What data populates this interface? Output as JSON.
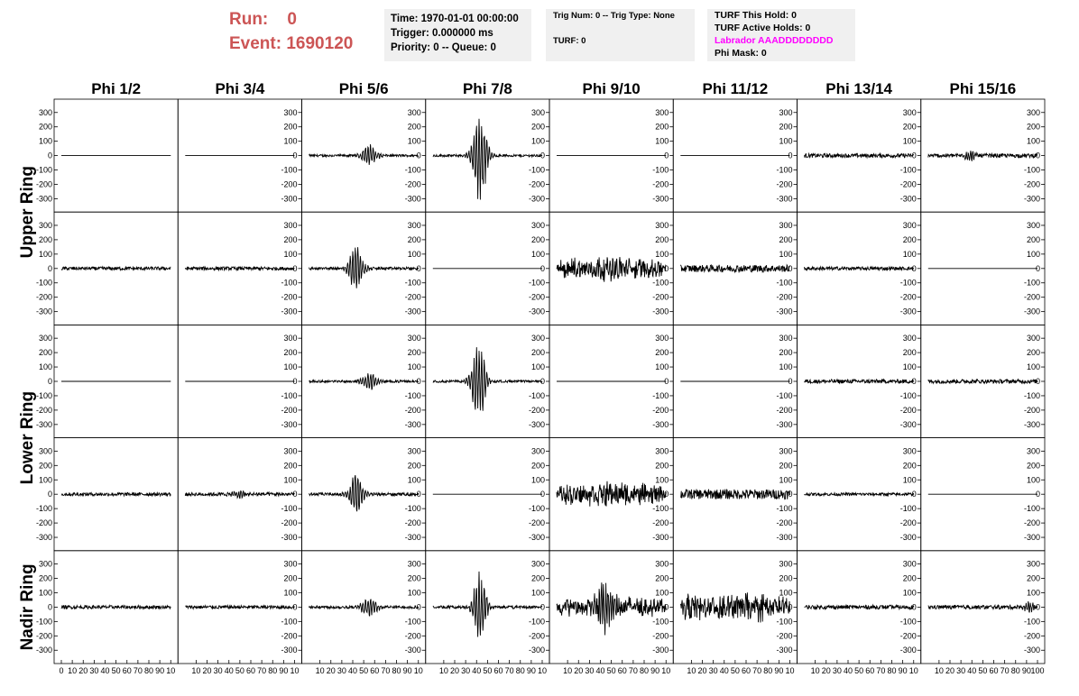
{
  "header": {
    "run_label": "Run:",
    "run_value": "0",
    "event_label": "Event:",
    "event_value": "1690120"
  },
  "time_box": {
    "time": "Time: 1970-01-01 00:00:00",
    "trigger": "Trigger: 0.000000 ms",
    "priority": "Priority: 0 -- Queue: 0"
  },
  "trig_box": {
    "trig": "Trig Num: 0 -- Trig Type: None",
    "turf": "TURF: 0"
  },
  "turf_box": {
    "this_hold": "TURF This Hold: 0",
    "active_holds": "TURF Active Holds: 0",
    "labrador": "Labrador AAADDDDDDDD",
    "phi_mask": "Phi Mask: 0"
  },
  "colors": {
    "header_red": "#cc5555",
    "labrador_magenta": "#ff00ff",
    "box_bg": "#f0f0f0",
    "trace": "#000000"
  },
  "chart_data": {
    "type": "line",
    "columns": [
      "Phi 1/2",
      "Phi 3/4",
      "Phi 5/6",
      "Phi 7/8",
      "Phi 9/10",
      "Phi 11/12",
      "Phi 13/14",
      "Phi 15/16"
    ],
    "rings": [
      "Upper Ring",
      "Lower Ring",
      "Nadir Ring"
    ],
    "rows_per_ring": [
      2,
      2,
      1
    ],
    "xlim": [
      0,
      100
    ],
    "ylim": [
      -380,
      380
    ],
    "y_ticks": [
      -300,
      -200,
      -100,
      0,
      100,
      200,
      300
    ],
    "x_ticks": [
      0,
      10,
      20,
      30,
      40,
      50,
      60,
      70,
      80,
      90,
      100
    ],
    "x_tick_labels_first": [
      "0",
      "10",
      "20",
      "30",
      "40",
      "50",
      "60",
      "70",
      "80",
      "90",
      "10"
    ],
    "x_tick_labels": [
      "10",
      "20",
      "30",
      "40",
      "50",
      "60",
      "70",
      "80",
      "90",
      "10"
    ],
    "x_tick_labels_last": [
      "10",
      "20",
      "30",
      "40",
      "50",
      "60",
      "70",
      "80",
      "90",
      "100"
    ],
    "waveforms": [
      [
        {
          "kind": "flat"
        },
        {
          "kind": "flat"
        },
        {
          "kind": "pulse",
          "noise": 8,
          "center": 55,
          "width": 8,
          "amp": 75
        },
        {
          "kind": "pulse",
          "noise": 8,
          "center": 43,
          "width": 7,
          "amp": 330
        },
        {
          "kind": "flat"
        },
        {
          "kind": "flat"
        },
        {
          "kind": "noise",
          "noise": 14
        },
        {
          "kind": "noise",
          "noise": 14,
          "burst": {
            "center": 38,
            "width": 6,
            "amp": 30
          }
        }
      ],
      [
        {
          "kind": "noise",
          "noise": 12
        },
        {
          "kind": "noise",
          "noise": 12
        },
        {
          "kind": "pulse",
          "noise": 10,
          "center": 43,
          "width": 7,
          "amp": 160
        },
        {
          "kind": "flat"
        },
        {
          "kind": "band",
          "noise": 25,
          "amp": 75
        },
        {
          "kind": "noise",
          "noise": 25
        },
        {
          "kind": "noise",
          "noise": 12
        },
        {
          "kind": "flat"
        }
      ],
      [
        {
          "kind": "flat"
        },
        {
          "kind": "flat"
        },
        {
          "kind": "pulse",
          "noise": 8,
          "center": 55,
          "width": 8,
          "amp": 60
        },
        {
          "kind": "pulse",
          "noise": 8,
          "center": 42,
          "width": 7,
          "amp": 290
        },
        {
          "kind": "flat"
        },
        {
          "kind": "flat"
        },
        {
          "kind": "noise",
          "noise": 14
        },
        {
          "kind": "noise",
          "noise": 14
        }
      ],
      [
        {
          "kind": "noise",
          "noise": 12
        },
        {
          "kind": "noise",
          "noise": 12,
          "burst": {
            "center": 50,
            "width": 10,
            "amp": 22
          }
        },
        {
          "kind": "pulse",
          "noise": 10,
          "center": 43,
          "width": 7,
          "amp": 160
        },
        {
          "kind": "flat"
        },
        {
          "kind": "band",
          "noise": 30,
          "amp": 70
        },
        {
          "kind": "noise",
          "noise": 35
        },
        {
          "kind": "noise",
          "noise": 10
        },
        {
          "kind": "flat"
        }
      ],
      [
        {
          "kind": "noise",
          "noise": 12
        },
        {
          "kind": "noise",
          "noise": 12
        },
        {
          "kind": "pulse",
          "noise": 10,
          "center": 55,
          "width": 8,
          "amp": 70
        },
        {
          "kind": "pulse",
          "noise": 10,
          "center": 43,
          "width": 6,
          "amp": 280
        },
        {
          "kind": "band",
          "noise": 30,
          "amp": 60,
          "burst": {
            "center": 45,
            "width": 9,
            "amp": 150
          }
        },
        {
          "kind": "band",
          "noise": 50,
          "amp": 75
        },
        {
          "kind": "noise",
          "noise": 14
        },
        {
          "kind": "noise",
          "noise": 14,
          "burst": {
            "center": 92,
            "width": 5,
            "amp": 40
          }
        }
      ]
    ]
  }
}
